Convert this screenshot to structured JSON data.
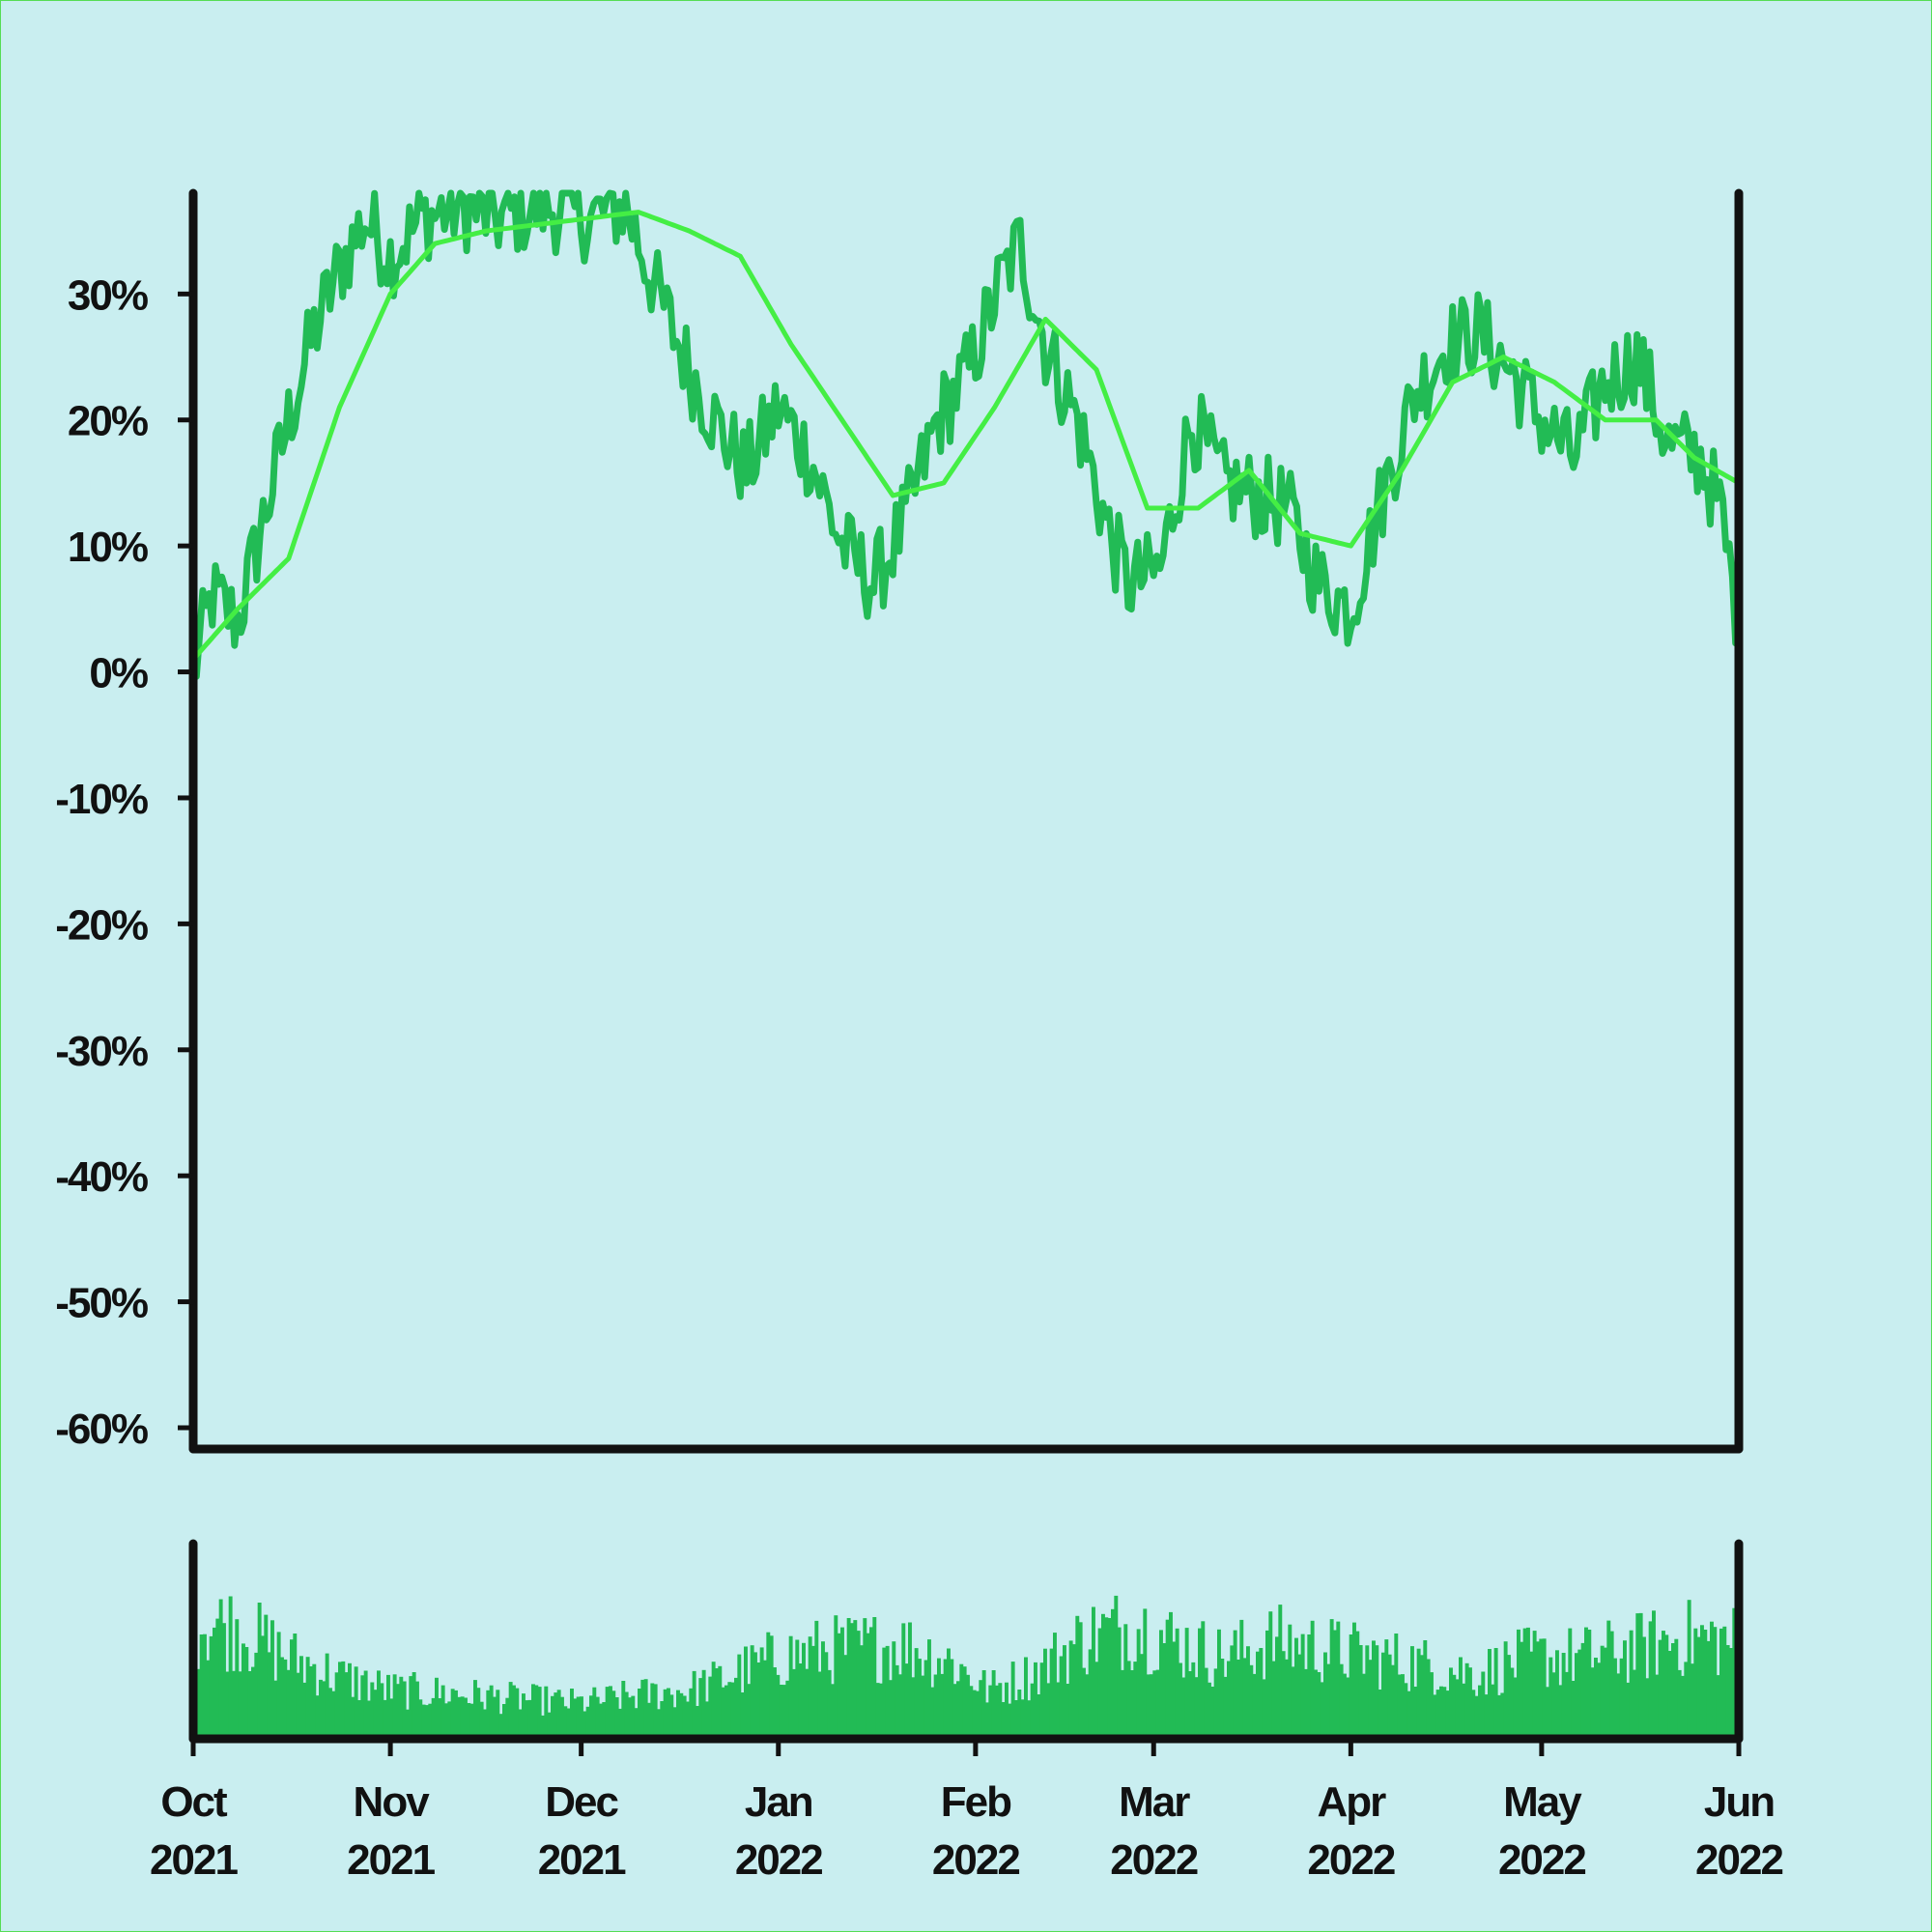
{
  "colors": {
    "background": "#c9eef0",
    "border": "#55dd55",
    "price_line": "#22bb55",
    "ma_line": "#44ee44",
    "volume_bars": "#22bb55",
    "axis": "#111111"
  },
  "chart_data": [
    {
      "type": "line",
      "title": "",
      "xlabel": "",
      "ylabel": "",
      "x_range": [
        "2021-10-01",
        "2022-06-01"
      ],
      "ylim": [
        -60,
        38
      ],
      "y_ticks": [
        {
          "value": 30,
          "label": "30%"
        },
        {
          "value": 20,
          "label": "20%"
        },
        {
          "value": 10,
          "label": "10%"
        },
        {
          "value": 0,
          "label": "0%"
        },
        {
          "value": -10,
          "label": "-10%"
        },
        {
          "value": -20,
          "label": "-20%"
        },
        {
          "value": -30,
          "label": "-30%"
        },
        {
          "value": -40,
          "label": "-40%"
        },
        {
          "value": -50,
          "label": "-50%"
        },
        {
          "value": -60,
          "label": "-60%"
        }
      ],
      "grid": false,
      "series": [
        {
          "role": "percent change",
          "x": [
            "2021-10-01",
            "2021-10-04",
            "2021-10-08",
            "2021-10-12",
            "2021-10-16",
            "2021-10-20",
            "2021-10-24",
            "2021-10-28",
            "2021-11-01",
            "2021-11-06",
            "2021-11-12",
            "2021-11-18",
            "2021-11-25",
            "2021-12-02",
            "2021-12-08",
            "2021-12-13",
            "2021-12-18",
            "2021-12-23",
            "2021-12-27",
            "2022-01-01",
            "2022-01-06",
            "2022-01-11",
            "2022-01-16",
            "2022-01-21",
            "2022-01-26",
            "2022-01-31",
            "2022-02-05",
            "2022-02-08",
            "2022-02-12",
            "2022-02-17",
            "2022-02-22",
            "2022-02-25",
            "2022-03-02",
            "2022-03-07",
            "2022-03-12",
            "2022-03-17",
            "2022-03-22",
            "2022-03-27",
            "2022-04-01",
            "2022-04-06",
            "2022-04-11",
            "2022-04-16",
            "2022-04-21",
            "2022-04-26",
            "2022-05-01",
            "2022-05-06",
            "2022-05-11",
            "2022-05-16",
            "2022-05-21",
            "2022-05-26",
            "2022-05-29",
            "2022-06-01"
          ],
          "y": [
            0,
            6,
            4,
            12,
            20,
            27,
            32,
            36,
            33,
            36,
            37,
            36,
            37,
            36,
            37,
            30,
            24,
            19,
            16,
            21,
            17,
            10,
            7,
            12,
            20,
            24,
            31,
            34,
            26,
            20,
            11,
            7,
            8,
            20,
            15,
            14,
            13,
            7,
            5,
            14,
            22,
            26,
            27,
            24,
            20,
            17,
            23,
            25,
            18,
            17,
            13,
            4
          ]
        },
        {
          "role": "moving average",
          "x": [
            "2021-10-01",
            "2021-10-08",
            "2021-10-16",
            "2021-10-24",
            "2021-11-01",
            "2021-11-08",
            "2021-11-16",
            "2021-11-24",
            "2021-12-02",
            "2021-12-10",
            "2021-12-18",
            "2021-12-26",
            "2022-01-03",
            "2022-01-11",
            "2022-01-19",
            "2022-01-27",
            "2022-02-04",
            "2022-02-12",
            "2022-02-20",
            "2022-02-28",
            "2022-03-08",
            "2022-03-16",
            "2022-03-24",
            "2022-04-01",
            "2022-04-09",
            "2022-04-17",
            "2022-04-25",
            "2022-05-03",
            "2022-05-11",
            "2022-05-19",
            "2022-05-25",
            "2022-06-01"
          ],
          "y": [
            1,
            5,
            9,
            21,
            30,
            34,
            35,
            35.5,
            36,
            36.5,
            35,
            33,
            26,
            20,
            14,
            15,
            21,
            28,
            24,
            13,
            13,
            16,
            11,
            10,
            16,
            23,
            25,
            23,
            20,
            20,
            17,
            15
          ]
        }
      ]
    },
    {
      "type": "bar",
      "title": "",
      "x_axis_labels": [
        {
          "month": "Oct",
          "year": "2021"
        },
        {
          "month": "Nov",
          "year": "2021"
        },
        {
          "month": "Dec",
          "year": "2021"
        },
        {
          "month": "Jan",
          "year": "2022"
        },
        {
          "month": "Feb",
          "year": "2022"
        },
        {
          "month": "Mar",
          "year": "2022"
        },
        {
          "month": "Apr",
          "year": "2022"
        },
        {
          "month": "May",
          "year": "2022"
        },
        {
          "month": "Jun",
          "year": "2022"
        }
      ],
      "x_ticks": [
        "2021-10-01",
        "2021-11-01",
        "2021-12-01",
        "2022-01-01",
        "2022-02-01",
        "2022-03-01",
        "2022-04-01",
        "2022-05-01",
        "2022-06-01"
      ],
      "ylim": [
        0,
        1
      ],
      "grid": false,
      "volume_profile": {
        "x": [
          "2021-10-01",
          "2021-10-08",
          "2021-10-16",
          "2021-10-24",
          "2021-11-01",
          "2021-11-10",
          "2021-11-20",
          "2021-12-01",
          "2021-12-10",
          "2021-12-18",
          "2021-12-24",
          "2022-01-01",
          "2022-01-10",
          "2022-01-20",
          "2022-01-28",
          "2022-02-03",
          "2022-02-10",
          "2022-02-18",
          "2022-02-26",
          "2022-03-04",
          "2022-03-12",
          "2022-03-20",
          "2022-03-28",
          "2022-04-05",
          "2022-04-13",
          "2022-04-21",
          "2022-04-29",
          "2022-05-07",
          "2022-05-15",
          "2022-05-23",
          "2022-06-01"
        ],
        "level": [
          0.72,
          0.68,
          0.5,
          0.38,
          0.3,
          0.28,
          0.25,
          0.22,
          0.27,
          0.3,
          0.38,
          0.5,
          0.55,
          0.58,
          0.48,
          0.3,
          0.4,
          0.62,
          0.7,
          0.6,
          0.5,
          0.6,
          0.55,
          0.5,
          0.45,
          0.4,
          0.5,
          0.5,
          0.55,
          0.62,
          0.6
        ]
      }
    }
  ]
}
